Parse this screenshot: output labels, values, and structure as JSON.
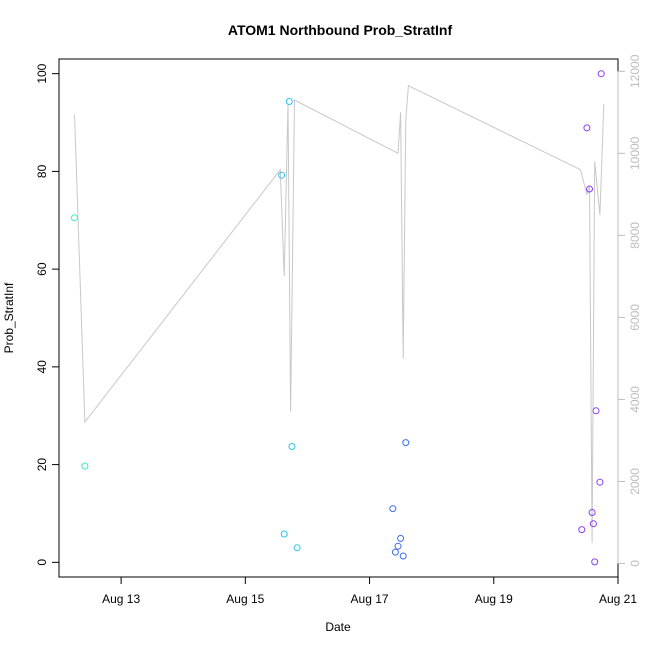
{
  "chart_data": {
    "type": "scatter",
    "title": "ATOM1 Northbound Prob_StratInf",
    "xlabel": "Date",
    "ylabel": "Prob_StratInf",
    "x_ticks": [
      {
        "date": "2023-08-13",
        "label": "Aug 13"
      },
      {
        "date": "2023-08-15",
        "label": "Aug 15"
      },
      {
        "date": "2023-08-17",
        "label": "Aug 17"
      },
      {
        "date": "2023-08-19",
        "label": "Aug 19"
      },
      {
        "date": "2023-08-21",
        "label": "Aug 21"
      }
    ],
    "xlim": [
      "2023-08-12T00:00",
      "2023-08-21T00:00"
    ],
    "y_left": {
      "ticks": [
        0,
        20,
        40,
        60,
        80,
        100
      ],
      "lim": [
        -3,
        103
      ]
    },
    "y_right": {
      "ticks": [
        0,
        2000,
        4000,
        6000,
        8000,
        10000,
        12000
      ],
      "tick_color": "#bdbdbd",
      "lim": [
        -330,
        12300
      ]
    },
    "grid": false,
    "points": [
      {
        "x": "2023-08-12T06:00",
        "y": 70.5,
        "color": "#3ce8c9"
      },
      {
        "x": "2023-08-12T10:00",
        "y": 19.7,
        "color": "#3ce8c9"
      },
      {
        "x": "2023-08-15T14:00",
        "y": 79.2,
        "color": "#2ec2ea"
      },
      {
        "x": "2023-08-15T15:00",
        "y": 5.8,
        "color": "#2ec2ea"
      },
      {
        "x": "2023-08-15T17:00",
        "y": 94.3,
        "color": "#2ec2ea"
      },
      {
        "x": "2023-08-15T18:00",
        "y": 23.7,
        "color": "#2ec2ea"
      },
      {
        "x": "2023-08-15T20:00",
        "y": 3.0,
        "color": "#2ec2ea"
      },
      {
        "x": "2023-08-17T09:00",
        "y": 11.0,
        "color": "#3f6ef0"
      },
      {
        "x": "2023-08-17T10:00",
        "y": 2.1,
        "color": "#3f6ef0"
      },
      {
        "x": "2023-08-17T11:00",
        "y": 3.3,
        "color": "#3f6ef0"
      },
      {
        "x": "2023-08-17T12:00",
        "y": 4.9,
        "color": "#3f6ef0"
      },
      {
        "x": "2023-08-17T13:00",
        "y": 1.3,
        "color": "#3f6ef0"
      },
      {
        "x": "2023-08-17T14:00",
        "y": 24.5,
        "color": "#3f6ef0"
      },
      {
        "x": "2023-08-20T10:00",
        "y": 6.7,
        "color": "#8a3ff0"
      },
      {
        "x": "2023-08-20T12:00",
        "y": 88.9,
        "color": "#8a3ff0"
      },
      {
        "x": "2023-08-20T13:00",
        "y": 76.4,
        "color": "#8a3ff0"
      },
      {
        "x": "2023-08-20T14:00",
        "y": 10.2,
        "color": "#8a3ff0"
      },
      {
        "x": "2023-08-20T14:30",
        "y": 7.9,
        "color": "#8a3ff0"
      },
      {
        "x": "2023-08-20T15:00",
        "y": 0.1,
        "color": "#8a3ff0"
      },
      {
        "x": "2023-08-20T15:30",
        "y": 31.0,
        "color": "#8a3ff0"
      },
      {
        "x": "2023-08-20T17:00",
        "y": 16.4,
        "color": "#8a3ff0"
      },
      {
        "x": "2023-08-20T17:30",
        "y": 100.0,
        "color": "#8a3ff0"
      }
    ],
    "line": {
      "color": "#c8c8c8",
      "axis": "right",
      "values": [
        {
          "x": "2023-08-12T06:00",
          "y": 10950
        },
        {
          "x": "2023-08-12T10:00",
          "y": 3450
        },
        {
          "x": "2023-08-15T13:30",
          "y": 9600
        },
        {
          "x": "2023-08-15T15:00",
          "y": 7000
        },
        {
          "x": "2023-08-15T16:30",
          "y": 11200
        },
        {
          "x": "2023-08-15T17:30",
          "y": 3700
        },
        {
          "x": "2023-08-15T19:00",
          "y": 11300
        },
        {
          "x": "2023-08-17T11:00",
          "y": 10000
        },
        {
          "x": "2023-08-17T12:00",
          "y": 11000
        },
        {
          "x": "2023-08-17T13:00",
          "y": 5000
        },
        {
          "x": "2023-08-17T14:00",
          "y": 10800
        },
        {
          "x": "2023-08-17T15:00",
          "y": 11650
        },
        {
          "x": "2023-08-20T09:30",
          "y": 9600
        },
        {
          "x": "2023-08-20T12:00",
          "y": 9000
        },
        {
          "x": "2023-08-20T13:00",
          "y": 9200
        },
        {
          "x": "2023-08-20T14:00",
          "y": 500
        },
        {
          "x": "2023-08-20T15:00",
          "y": 9800
        },
        {
          "x": "2023-08-20T17:00",
          "y": 8500
        },
        {
          "x": "2023-08-20T18:30",
          "y": 11200
        }
      ]
    }
  }
}
